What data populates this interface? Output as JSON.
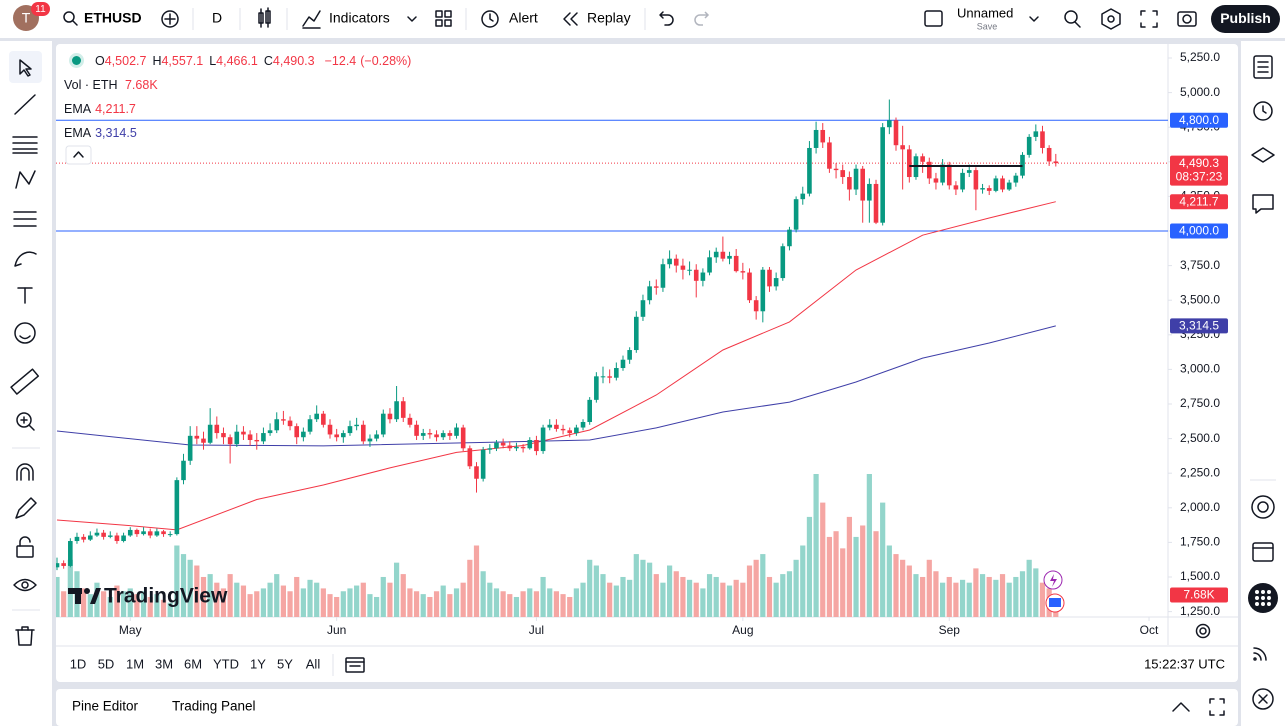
{
  "top_bar": {
    "avatar": "T",
    "badge": "11",
    "symbol": "ETHUSD",
    "interval": "D",
    "indicators": "Indicators",
    "alert": "Alert",
    "replay": "Replay",
    "layout_name": "Unnamed",
    "save": "Save",
    "publish": "Publish"
  },
  "chart_data": {
    "type": "candlestick",
    "watermark": "TradingView",
    "legend": {
      "ohlc": [
        {
          "label": "O",
          "value": "4,502.7"
        },
        {
          "label": "H",
          "value": "4,557.1"
        },
        {
          "label": "L",
          "value": "4,466.1"
        },
        {
          "label": "C",
          "value": "4,490.3"
        }
      ],
      "change": "−12.4",
      "change_pct": "(−0.28%)"
    },
    "xlim": [
      0,
      166.7
    ],
    "xticks": [
      {
        "value": 11,
        "label": "May"
      },
      {
        "value": 42,
        "label": "Jun"
      },
      {
        "value": 72,
        "label": "Jul"
      },
      {
        "value": 103,
        "label": "Aug"
      },
      {
        "value": 134,
        "label": "Sep"
      },
      {
        "value": 164,
        "label": "Oct"
      }
    ],
    "ylim": [
      1211,
      5344
    ],
    "yticks": [
      {
        "value": 1250,
        "label": "1,250.0"
      },
      {
        "value": 1500,
        "label": "1,500.0"
      },
      {
        "value": 1750,
        "label": "1,750.0"
      },
      {
        "value": 2000,
        "label": "2,000.0"
      },
      {
        "value": 2250,
        "label": "2,250.0"
      },
      {
        "value": 2500,
        "label": "2,500.0"
      },
      {
        "value": 2750,
        "label": "2,750.0"
      },
      {
        "value": 3000,
        "label": "3,000.0"
      },
      {
        "value": 3250,
        "label": "3,250.0"
      },
      {
        "value": 3500,
        "label": "3,500.0"
      },
      {
        "value": 3750,
        "label": "3,750.0"
      },
      {
        "value": 4000,
        "label": "4,000.0"
      },
      {
        "value": 4250,
        "label": "4,250.0"
      },
      {
        "value": 4500,
        "label": "4,500.0"
      },
      {
        "value": 4750,
        "label": "4,750.0"
      },
      {
        "value": 5000,
        "label": "5,000.0"
      },
      {
        "value": 5250,
        "label": "5,250.0"
      }
    ],
    "grid": false,
    "up_color": "#089981",
    "down_color": "#f23645",
    "candles": [
      [
        1570,
        1640,
        1550,
        1600
      ],
      [
        1600,
        1620,
        1560,
        1580
      ],
      [
        1580,
        1780,
        1570,
        1760
      ],
      [
        1760,
        1820,
        1740,
        1790
      ],
      [
        1790,
        1810,
        1750,
        1770
      ],
      [
        1770,
        1830,
        1760,
        1800
      ],
      [
        1800,
        1850,
        1790,
        1820
      ],
      [
        1820,
        1840,
        1770,
        1790
      ],
      [
        1790,
        1830,
        1780,
        1800
      ],
      [
        1800,
        1820,
        1740,
        1760
      ],
      [
        1760,
        1820,
        1750,
        1800
      ],
      [
        1800,
        1860,
        1790,
        1840
      ],
      [
        1840,
        1850,
        1790,
        1810
      ],
      [
        1810,
        1860,
        1800,
        1830
      ],
      [
        1830,
        1850,
        1780,
        1800
      ],
      [
        1800,
        1850,
        1790,
        1830
      ],
      [
        1830,
        1840,
        1790,
        1810
      ],
      [
        1810,
        1830,
        1790,
        1810
      ],
      [
        1810,
        2220,
        1800,
        2200
      ],
      [
        2200,
        2390,
        2170,
        2340
      ],
      [
        2340,
        2590,
        2310,
        2520
      ],
      [
        2520,
        2590,
        2460,
        2500
      ],
      [
        2500,
        2550,
        2420,
        2470
      ],
      [
        2470,
        2720,
        2460,
        2600
      ],
      [
        2600,
        2660,
        2500,
        2540
      ],
      [
        2540,
        2580,
        2460,
        2510
      ],
      [
        2510,
        2530,
        2320,
        2460
      ],
      [
        2460,
        2600,
        2440,
        2550
      ],
      [
        2550,
        2590,
        2490,
        2530
      ],
      [
        2530,
        2560,
        2450,
        2490
      ],
      [
        2490,
        2540,
        2420,
        2480
      ],
      [
        2480,
        2580,
        2460,
        2540
      ],
      [
        2540,
        2610,
        2520,
        2560
      ],
      [
        2560,
        2690,
        2540,
        2640
      ],
      [
        2640,
        2700,
        2600,
        2630
      ],
      [
        2630,
        2660,
        2560,
        2590
      ],
      [
        2590,
        2610,
        2460,
        2510
      ],
      [
        2510,
        2580,
        2480,
        2550
      ],
      [
        2550,
        2670,
        2530,
        2640
      ],
      [
        2640,
        2740,
        2620,
        2680
      ],
      [
        2680,
        2700,
        2580,
        2600
      ],
      [
        2600,
        2640,
        2500,
        2530
      ],
      [
        2530,
        2570,
        2480,
        2510
      ],
      [
        2510,
        2560,
        2470,
        2540
      ],
      [
        2540,
        2630,
        2520,
        2590
      ],
      [
        2590,
        2650,
        2560,
        2600
      ],
      [
        2600,
        2630,
        2460,
        2480
      ],
      [
        2480,
        2530,
        2440,
        2500
      ],
      [
        2500,
        2560,
        2480,
        2530
      ],
      [
        2530,
        2710,
        2510,
        2680
      ],
      [
        2680,
        2720,
        2610,
        2640
      ],
      [
        2640,
        2880,
        2620,
        2770
      ],
      [
        2770,
        2800,
        2620,
        2650
      ],
      [
        2650,
        2680,
        2580,
        2600
      ],
      [
        2600,
        2630,
        2490,
        2520
      ],
      [
        2520,
        2570,
        2490,
        2540
      ],
      [
        2540,
        2570,
        2500,
        2530
      ],
      [
        2530,
        2560,
        2480,
        2510
      ],
      [
        2510,
        2560,
        2490,
        2540
      ],
      [
        2540,
        2560,
        2490,
        2520
      ],
      [
        2520,
        2610,
        2500,
        2580
      ],
      [
        2580,
        2600,
        2410,
        2430
      ],
      [
        2430,
        2450,
        2280,
        2300
      ],
      [
        2300,
        2330,
        2110,
        2210
      ],
      [
        2210,
        2440,
        2190,
        2420
      ],
      [
        2420,
        2460,
        2390,
        2430
      ],
      [
        2430,
        2490,
        2410,
        2470
      ],
      [
        2470,
        2500,
        2430,
        2450
      ],
      [
        2450,
        2480,
        2410,
        2430
      ],
      [
        2430,
        2470,
        2410,
        2440
      ],
      [
        2440,
        2460,
        2400,
        2430
      ],
      [
        2430,
        2510,
        2420,
        2490
      ],
      [
        2490,
        2520,
        2380,
        2410
      ],
      [
        2410,
        2600,
        2390,
        2580
      ],
      [
        2580,
        2640,
        2560,
        2600
      ],
      [
        2600,
        2640,
        2550,
        2570
      ],
      [
        2570,
        2600,
        2530,
        2560
      ],
      [
        2560,
        2580,
        2510,
        2540
      ],
      [
        2540,
        2600,
        2520,
        2580
      ],
      [
        2580,
        2640,
        2560,
        2620
      ],
      [
        2620,
        2800,
        2600,
        2780
      ],
      [
        2780,
        2980,
        2760,
        2950
      ],
      [
        2950,
        3020,
        2900,
        2950
      ],
      [
        2950,
        3000,
        2900,
        2940
      ],
      [
        2940,
        3050,
        2920,
        3010
      ],
      [
        3010,
        3100,
        2990,
        3070
      ],
      [
        3070,
        3160,
        3040,
        3140
      ],
      [
        3140,
        3420,
        3120,
        3380
      ],
      [
        3380,
        3540,
        3350,
        3500
      ],
      [
        3500,
        3640,
        3470,
        3600
      ],
      [
        3600,
        3650,
        3540,
        3590
      ],
      [
        3590,
        3800,
        3560,
        3760
      ],
      [
        3760,
        3860,
        3730,
        3800
      ],
      [
        3800,
        3830,
        3700,
        3750
      ],
      [
        3750,
        3800,
        3650,
        3720
      ],
      [
        3720,
        3780,
        3680,
        3720
      ],
      [
        3720,
        3760,
        3520,
        3640
      ],
      [
        3640,
        3730,
        3600,
        3700
      ],
      [
        3700,
        3860,
        3680,
        3810
      ],
      [
        3810,
        3880,
        3770,
        3850
      ],
      [
        3850,
        3960,
        3780,
        3800
      ],
      [
        3800,
        3850,
        3760,
        3820
      ],
      [
        3820,
        3870,
        3700,
        3710
      ],
      [
        3710,
        3770,
        3650,
        3700
      ],
      [
        3700,
        3730,
        3480,
        3500
      ],
      [
        3500,
        3530,
        3360,
        3420
      ],
      [
        3420,
        3740,
        3340,
        3720
      ],
      [
        3720,
        3740,
        3560,
        3600
      ],
      [
        3600,
        3700,
        3570,
        3660
      ],
      [
        3660,
        3910,
        3640,
        3890
      ],
      [
        3890,
        4030,
        3860,
        4010
      ],
      [
        4010,
        4250,
        3990,
        4230
      ],
      [
        4230,
        4320,
        4190,
        4270
      ],
      [
        4270,
        4650,
        4250,
        4600
      ],
      [
        4600,
        4790,
        4560,
        4730
      ],
      [
        4730,
        4780,
        4600,
        4640
      ],
      [
        4640,
        4680,
        4420,
        4450
      ],
      [
        4450,
        4490,
        4380,
        4440
      ],
      [
        4440,
        4480,
        4340,
        4390
      ],
      [
        4390,
        4430,
        4220,
        4300
      ],
      [
        4300,
        4480,
        4260,
        4450
      ],
      [
        4450,
        4470,
        4060,
        4220
      ],
      [
        4220,
        4380,
        4060,
        4340
      ],
      [
        4340,
        4370,
        4050,
        4060
      ],
      [
        4060,
        4780,
        4040,
        4750
      ],
      [
        4750,
        4950,
        4700,
        4800
      ],
      [
        4800,
        4820,
        4580,
        4620
      ],
      [
        4620,
        4760,
        4300,
        4590
      ],
      [
        4590,
        4620,
        4350,
        4390
      ],
      [
        4390,
        4560,
        4370,
        4540
      ],
      [
        4540,
        4560,
        4420,
        4500
      ],
      [
        4500,
        4530,
        4340,
        4380
      ],
      [
        4380,
        4420,
        4300,
        4350
      ],
      [
        4350,
        4520,
        4330,
        4480
      ],
      [
        4480,
        4500,
        4300,
        4330
      ],
      [
        4330,
        4360,
        4260,
        4300
      ],
      [
        4300,
        4450,
        4280,
        4420
      ],
      [
        4420,
        4480,
        4390,
        4440
      ],
      [
        4440,
        4460,
        4150,
        4300
      ],
      [
        4300,
        4340,
        4270,
        4310
      ],
      [
        4310,
        4330,
        4260,
        4290
      ],
      [
        4290,
        4400,
        4280,
        4380
      ],
      [
        4380,
        4400,
        4280,
        4300
      ],
      [
        4300,
        4370,
        4290,
        4350
      ],
      [
        4350,
        4420,
        4320,
        4400
      ],
      [
        4400,
        4570,
        4380,
        4550
      ],
      [
        4550,
        4700,
        4530,
        4680
      ],
      [
        4680,
        4770,
        4650,
        4720
      ],
      [
        4720,
        4760,
        4560,
        4600
      ],
      [
        4600,
        4620,
        4470,
        4502.7
      ],
      [
        4502.7,
        4557.1,
        4466.1,
        4490.3
      ]
    ],
    "volume": {
      "name": "Vol · ETH",
      "last_label": "7.68K",
      "ylim": [
        0,
        50
      ],
      "up_color": "#93d5cb",
      "down_color": "#f5a6a3",
      "values": [
        14,
        9,
        20,
        16,
        10,
        8,
        12,
        9,
        7,
        11,
        9,
        10,
        8,
        9,
        7,
        8,
        6,
        5,
        25,
        22,
        20,
        18,
        14,
        15,
        12,
        10,
        15,
        12,
        11,
        8,
        9,
        10,
        12,
        15,
        11,
        9,
        14,
        10,
        13,
        12,
        10,
        8,
        7,
        9,
        10,
        11,
        12,
        8,
        7,
        14,
        12,
        19,
        15,
        10,
        9,
        8,
        7,
        9,
        11,
        8,
        10,
        12,
        20,
        25,
        16,
        12,
        10,
        9,
        8,
        7,
        9,
        10,
        9,
        14,
        10,
        9,
        8,
        7,
        10,
        12,
        20,
        18,
        15,
        12,
        11,
        14,
        13,
        22,
        20,
        19,
        15,
        12,
        18,
        16,
        14,
        13,
        12,
        10,
        15,
        14,
        12,
        11,
        13,
        12,
        18,
        20,
        22,
        14,
        12,
        15,
        16,
        20,
        25,
        35,
        50,
        40,
        28,
        30,
        24,
        35,
        28,
        32,
        50,
        30,
        40,
        25,
        22,
        20,
        18,
        15,
        14,
        20,
        16,
        12,
        14,
        12,
        13,
        12,
        17,
        15,
        14,
        13,
        15,
        12,
        14,
        16,
        20,
        17,
        12,
        10,
        7.68
      ]
    },
    "series": [
      {
        "name": "EMA",
        "color": "#f23645",
        "legend_value": "4,211.7",
        "x": [
          0,
          10,
          18,
          30,
          40,
          50,
          60,
          70,
          80,
          90,
          100,
          110,
          120,
          130,
          140,
          150
        ],
        "values": [
          1912,
          1875,
          1840,
          2060,
          2165,
          2288,
          2400,
          2450,
          2562,
          2815,
          3140,
          3343,
          3718,
          3970,
          4094,
          4211.7
        ]
      },
      {
        "name": "EMA",
        "color": "#3f3fa8",
        "legend_value": "3,314.5",
        "x": [
          0,
          20,
          40,
          60,
          80,
          90,
          100,
          110,
          120,
          130,
          140,
          150
        ],
        "values": [
          2555,
          2454,
          2447,
          2468,
          2490,
          2577,
          2692,
          2764,
          2909,
          3082,
          3191,
          3314.5
        ]
      }
    ],
    "levels": [
      {
        "value": 4800,
        "label": "4,800.0",
        "color": "#2962ff"
      },
      {
        "value": 4000,
        "label": "4,000.0",
        "color": "#2962ff"
      }
    ],
    "last_price": {
      "value": 4490.3,
      "label": "4,490.3",
      "countdown": "08:37:23"
    },
    "drawing": {
      "value": 4470,
      "x": [
        128,
        145
      ]
    }
  },
  "timeframes": [
    "1D",
    "5D",
    "1M",
    "3M",
    "6M",
    "YTD",
    "1Y",
    "5Y",
    "All"
  ],
  "clock": "15:22:37 UTC",
  "bottom_panel": [
    "Pine Editor",
    "Trading Panel"
  ]
}
